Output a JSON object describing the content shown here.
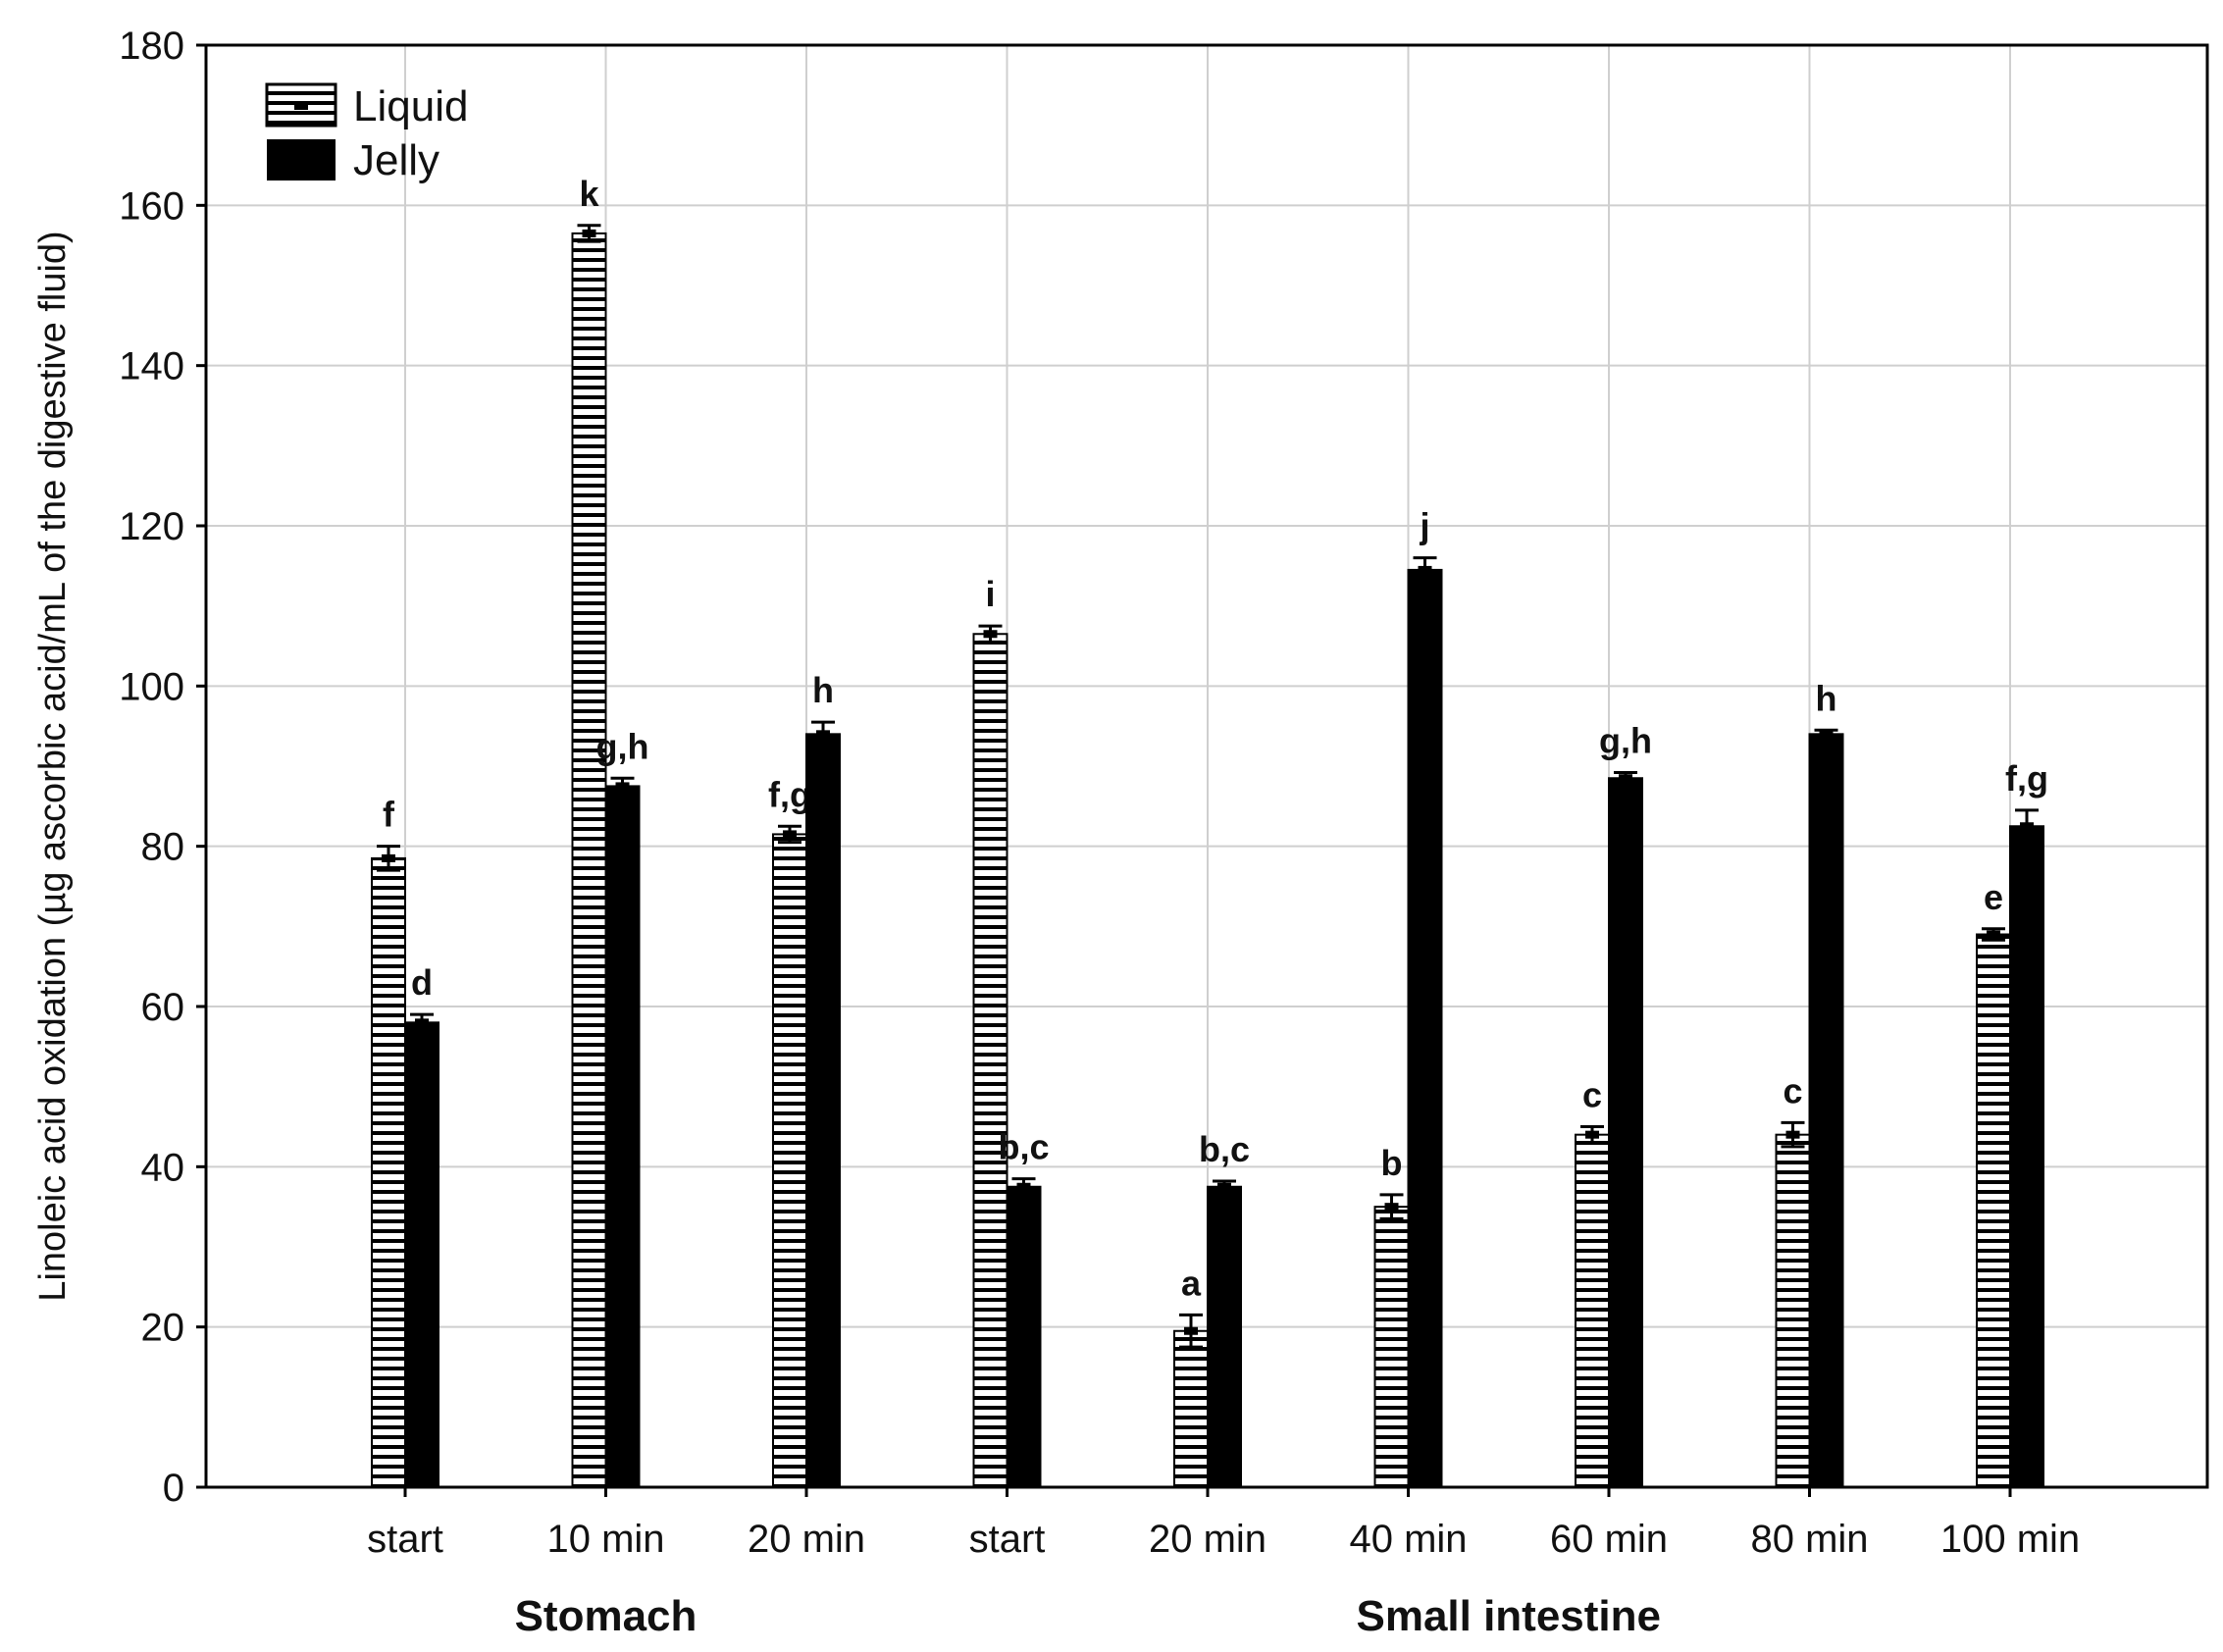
{
  "chart_data": {
    "type": "bar",
    "categories": [
      "start",
      "10 min",
      "20 min",
      "start",
      "20 min",
      "40 min",
      "60 min",
      "80 min",
      "100 min"
    ],
    "groups": [
      {
        "label": "Stomach",
        "categories": [
          "start",
          "10 min",
          "20 min"
        ]
      },
      {
        "label": "Small intestine",
        "categories": [
          "start",
          "20 min",
          "40 min",
          "60 min",
          "80 min",
          "100 min"
        ]
      }
    ],
    "series": [
      {
        "name": "Liquid",
        "pattern": "horizontal-stripes",
        "values": [
          78.5,
          156.5,
          81.5,
          106.5,
          19.5,
          35,
          44,
          44,
          69
        ],
        "errors": [
          1.5,
          1.0,
          1.0,
          1.0,
          2.0,
          1.5,
          1.0,
          1.5,
          0.7
        ],
        "significance": [
          "f",
          "k",
          "f,g",
          "i",
          "a",
          "b",
          "c",
          "c",
          "e"
        ]
      },
      {
        "name": "Jelly",
        "color": "#000000",
        "values": [
          58,
          87.5,
          94,
          37.5,
          37.5,
          114.5,
          88.5,
          94,
          82.5
        ],
        "errors": [
          1.0,
          1.0,
          1.5,
          1.0,
          0.7,
          1.5,
          0.7,
          0.5,
          2.0
        ],
        "significance": [
          "d",
          "g,h",
          "h",
          "b,c",
          "b,c",
          "j",
          "g,h",
          "h",
          "f,g"
        ]
      }
    ],
    "ylabel": "Linoleic acid oxidation (µg ascorbic acid/mL of the digestive fluid)",
    "xlabel": "",
    "title": "",
    "ylim": [
      0,
      180
    ],
    "yticks": [
      0,
      20,
      40,
      60,
      80,
      100,
      120,
      140,
      160,
      180
    ],
    "grid": true,
    "legend_position": "top-left"
  }
}
